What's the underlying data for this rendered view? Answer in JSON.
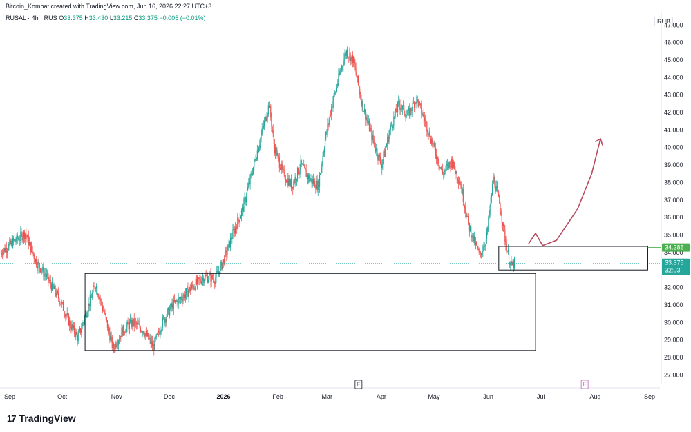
{
  "header": {
    "credit": "Bitcoin_Kombat created with TradingView.com, Jun 16, 2026 22:27 UTC+3",
    "symbol": "RUSAL · 4h · RUS",
    "o_label": "O",
    "o_value": "33.375",
    "h_label": "H",
    "h_value": "33.430",
    "l_label": "L",
    "l_value": "33.215",
    "c_label": "C",
    "c_value": "33.375",
    "change": "−0.005 (−0.01%)"
  },
  "currency": "RUB",
  "brand": {
    "logo": "17",
    "name": "TradingView"
  },
  "colors": {
    "up": "#26a69a",
    "down": "#ef5350",
    "green_tag": "#4caf50",
    "teal_tag": "#26a69a",
    "arrow": "#b84a5e",
    "box": "#131722",
    "event": "#c064c0"
  },
  "chart_data": {
    "type": "candlestick",
    "title": "",
    "ylim": [
      26.5,
      47.8
    ],
    "y_ticks": [
      27,
      28,
      29,
      30,
      31,
      32,
      33,
      34,
      35,
      36,
      37,
      38,
      39,
      40,
      41,
      42,
      43,
      44,
      45,
      46,
      47
    ],
    "y_tick_labels": [
      "27.000",
      "28.000",
      "29.000",
      "30.000",
      "31.000",
      "32.000",
      "33.000",
      "34.000",
      "35.000",
      "36.000",
      "37.000",
      "38.000",
      "39.000",
      "40.000",
      "41.000",
      "42.000",
      "43.000",
      "44.000",
      "45.000",
      "46.000",
      "47.000"
    ],
    "x_labels": [
      "Sep",
      "Oct",
      "Nov",
      "Dec",
      "2026",
      "Feb",
      "Mar",
      "Apr",
      "May",
      "Jun",
      "Jul",
      "Aug",
      "Sep"
    ],
    "x_label_dates": [
      "2025-09-01",
      "2025-10-01",
      "2025-11-01",
      "2025-12-01",
      "2026-01-01",
      "2026-02-01",
      "2026-03-01",
      "2026-04-01",
      "2026-05-01",
      "2026-06-01",
      "2026-07-01",
      "2026-08-01",
      "2026-09-01"
    ],
    "price_path": [
      [
        "2025-08-27",
        34.0
      ],
      [
        "2025-09-03",
        34.6
      ],
      [
        "2025-09-10",
        35.1
      ],
      [
        "2025-09-16",
        33.5
      ],
      [
        "2025-09-22",
        32.6
      ],
      [
        "2025-09-29",
        31.4
      ],
      [
        "2025-10-06",
        29.8
      ],
      [
        "2025-10-10",
        29.1
      ],
      [
        "2025-10-14",
        30.4
      ],
      [
        "2025-10-20",
        32.2
      ],
      [
        "2025-10-25",
        30.5
      ],
      [
        "2025-10-30",
        28.5
      ],
      [
        "2025-11-04",
        29.5
      ],
      [
        "2025-11-10",
        30.0
      ],
      [
        "2025-11-16",
        29.6
      ],
      [
        "2025-11-22",
        28.6
      ],
      [
        "2025-11-27",
        30.0
      ],
      [
        "2025-12-03",
        31.0
      ],
      [
        "2025-12-09",
        31.5
      ],
      [
        "2025-12-15",
        32.1
      ],
      [
        "2025-12-21",
        32.6
      ],
      [
        "2025-12-27",
        32.5
      ],
      [
        "2026-01-01",
        33.5
      ],
      [
        "2026-01-06",
        35.0
      ],
      [
        "2026-01-12",
        36.5
      ],
      [
        "2026-01-17",
        38.5
      ],
      [
        "2026-01-22",
        40.5
      ],
      [
        "2026-01-27",
        42.5
      ],
      [
        "2026-01-30",
        40.0
      ],
      [
        "2026-02-04",
        38.5
      ],
      [
        "2026-02-09",
        37.8
      ],
      [
        "2026-02-14",
        39.0
      ],
      [
        "2026-02-19",
        38.2
      ],
      [
        "2026-02-24",
        37.8
      ],
      [
        "2026-02-28",
        40.5
      ],
      [
        "2026-03-04",
        42.5
      ],
      [
        "2026-03-09",
        44.5
      ],
      [
        "2026-03-12",
        45.5
      ],
      [
        "2026-03-16",
        45.0
      ],
      [
        "2026-03-21",
        42.5
      ],
      [
        "2026-03-27",
        40.5
      ],
      [
        "2026-04-01",
        39.0
      ],
      [
        "2026-04-06",
        41.0
      ],
      [
        "2026-04-11",
        42.5
      ],
      [
        "2026-04-16",
        41.8
      ],
      [
        "2026-04-21",
        42.8
      ],
      [
        "2026-04-26",
        41.5
      ],
      [
        "2026-05-01",
        40.0
      ],
      [
        "2026-05-06",
        38.5
      ],
      [
        "2026-05-11",
        39.2
      ],
      [
        "2026-05-16",
        38.0
      ],
      [
        "2026-05-21",
        35.5
      ],
      [
        "2026-05-27",
        33.8
      ],
      [
        "2026-05-31",
        34.8
      ],
      [
        "2026-06-04",
        38.3
      ],
      [
        "2026-06-08",
        36.5
      ],
      [
        "2026-06-11",
        34.5
      ],
      [
        "2026-06-14",
        33.2
      ],
      [
        "2026-06-16",
        33.375
      ]
    ],
    "rectangles": [
      {
        "x0": "2025-10-14",
        "x1": "2026-06-28",
        "y0": 28.4,
        "y1": 32.8
      },
      {
        "x0": "2026-06-07",
        "x1": "2026-08-31",
        "y0": 33.0,
        "y1": 34.35
      }
    ],
    "arrow_path": [
      [
        "2026-06-24",
        34.5
      ],
      [
        "2026-06-28",
        35.1
      ],
      [
        "2026-07-02",
        34.4
      ],
      [
        "2026-07-10",
        34.7
      ],
      [
        "2026-07-22",
        36.5
      ],
      [
        "2026-07-30",
        38.5
      ],
      [
        "2026-08-04",
        40.5
      ]
    ],
    "price_labels": [
      {
        "value": 34.285,
        "label": "34.285",
        "color": "#4caf50"
      },
      {
        "value": 33.375,
        "label": "33.375",
        "sublabel": "32:03",
        "color": "#26a69a"
      }
    ],
    "events": [
      {
        "date": "2026-03-19",
        "label": "E"
      },
      {
        "date": "2026-07-26",
        "label": "E"
      }
    ]
  }
}
